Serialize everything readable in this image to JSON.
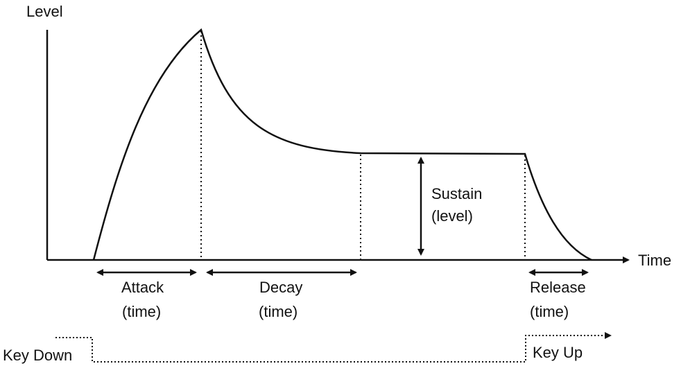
{
  "axes": {
    "y_label": "Level",
    "x_label": "Time"
  },
  "phases": {
    "attack": {
      "line1": "Attack",
      "line2": "(time)"
    },
    "decay": {
      "line1": "Decay",
      "line2": "(time)"
    },
    "sustain": {
      "line1": "Sustain",
      "line2": "(level)"
    },
    "release": {
      "line1": "Release",
      "line2": "(time)"
    }
  },
  "key_events": {
    "key_down": "Key Down",
    "key_up": "Key Up"
  },
  "colors": {
    "ink": "#111111",
    "background": "#ffffff"
  }
}
